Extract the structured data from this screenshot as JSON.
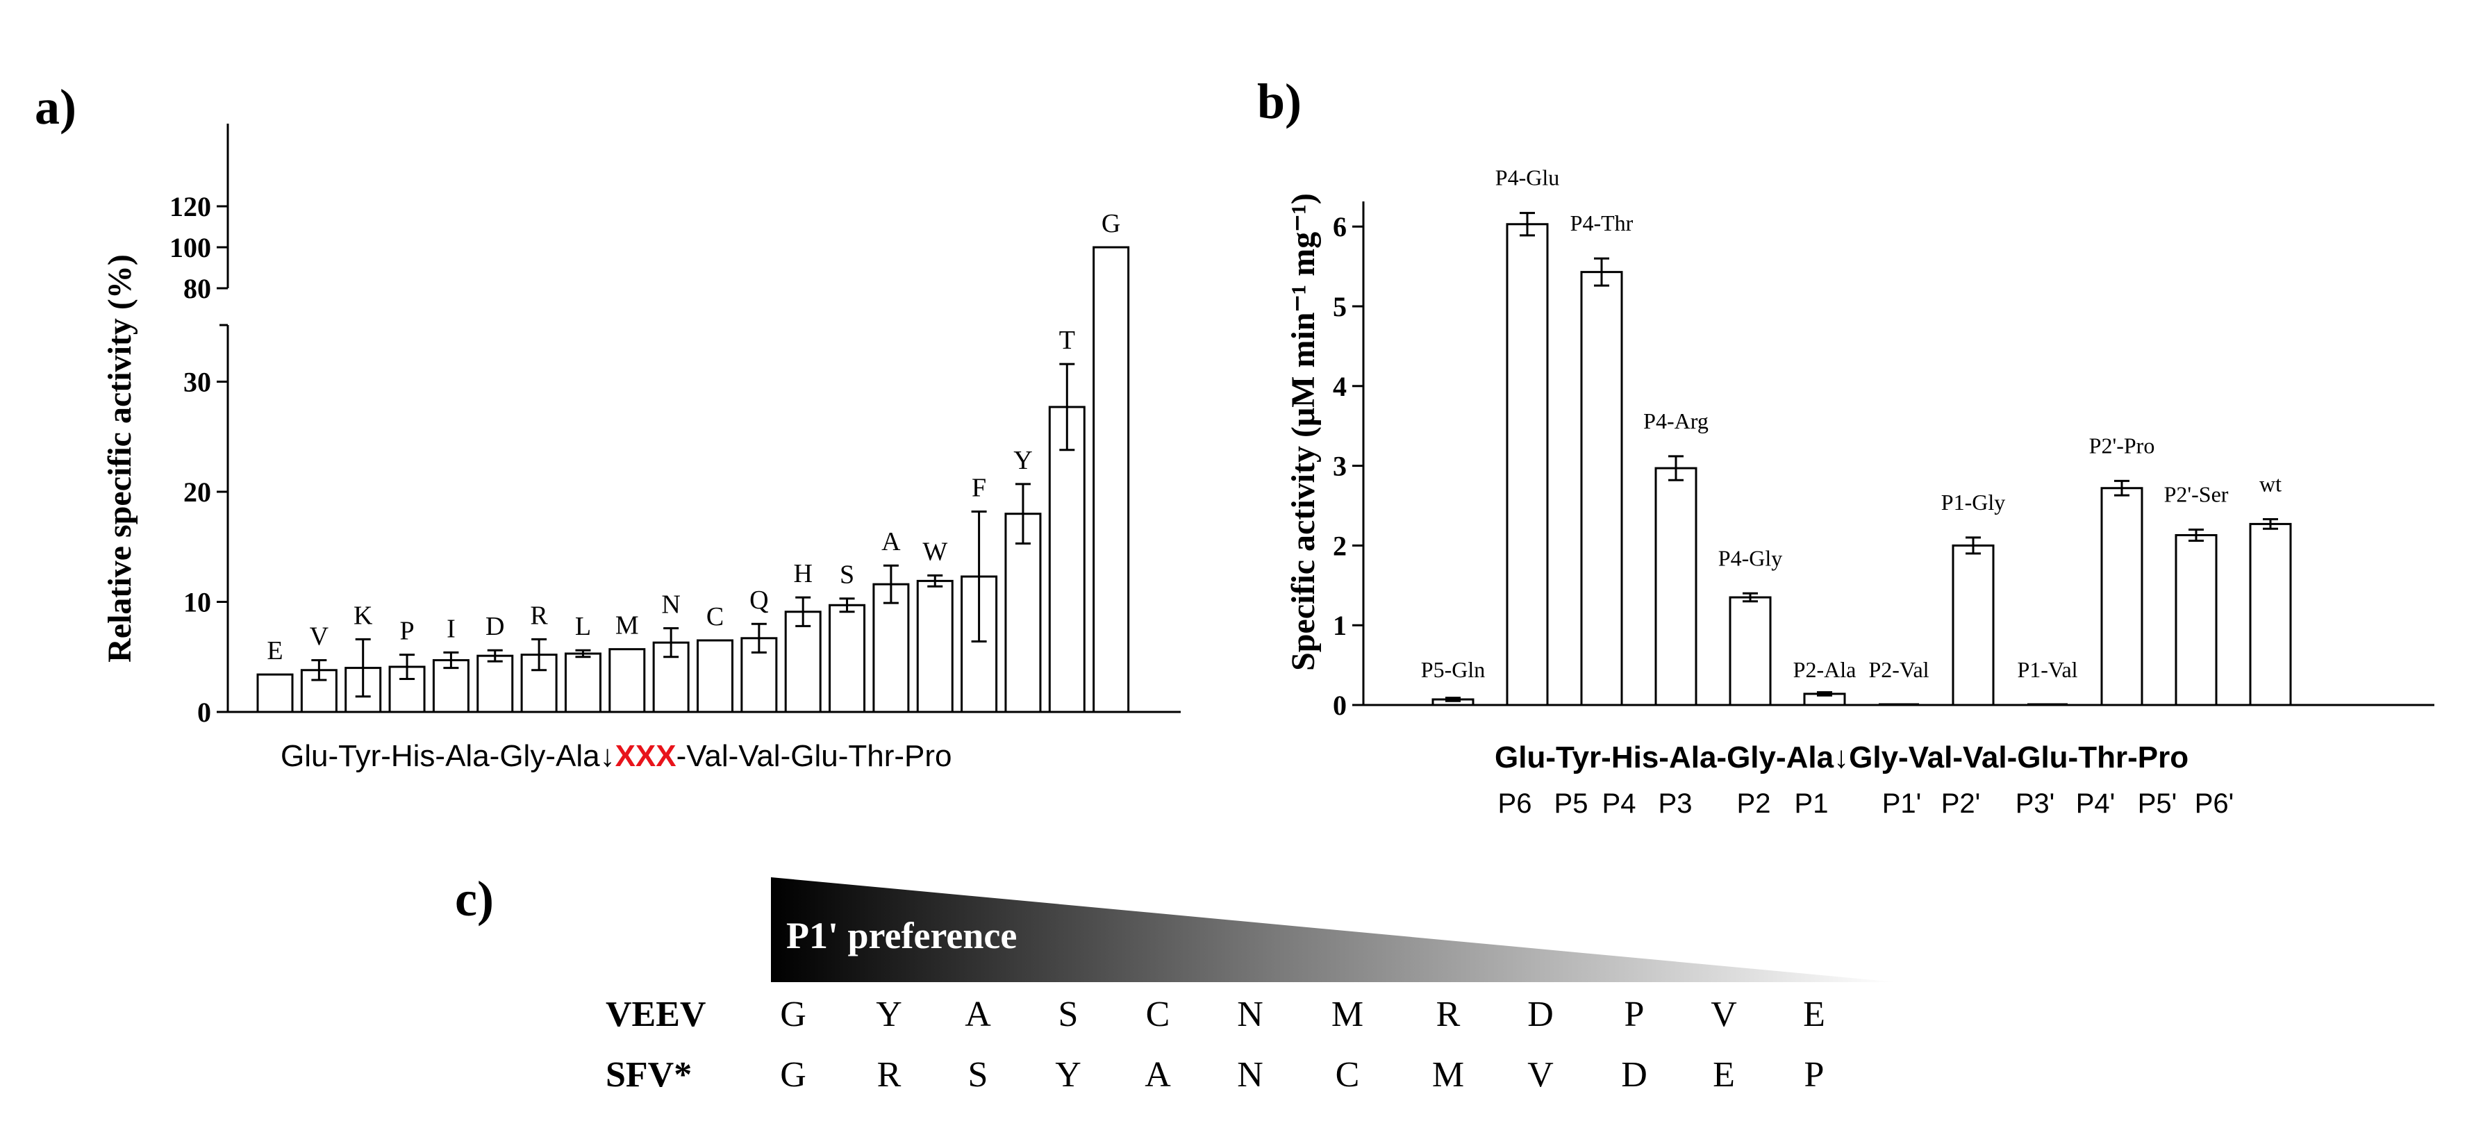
{
  "panel_labels": {
    "a": "a)",
    "b": "b)",
    "c": "c)"
  },
  "chart_data": [
    {
      "type": "bar",
      "title": "",
      "ylabel": "Relative specific activity (%)",
      "xlabel": "Glu-Tyr-His-Ala-Gly-Ala↓XXX-Val-Val-Glu-Thr-Pro",
      "xlabel_parts": {
        "prefix": "Glu-Tyr-His-Ala-Gly-Ala↓",
        "highlight": "XXX",
        "suffix": "-Val-Val-Glu-Thr-Pro",
        "highlight_color": "#e8141b"
      },
      "broken_axis": {
        "lower_range": [
          0,
          35
        ],
        "upper_range": [
          80,
          120
        ]
      },
      "yticks_lower": [
        "0",
        "10",
        "20",
        "30"
      ],
      "yticks_upper": [
        "80",
        "100",
        "120"
      ],
      "categories": [
        "E",
        "V",
        "K",
        "P",
        "I",
        "D",
        "R",
        "L",
        "M",
        "N",
        "C",
        "Q",
        "H",
        "S",
        "A",
        "W",
        "F",
        "Y",
        "T",
        "G"
      ],
      "values": [
        3.4,
        3.8,
        4.0,
        4.1,
        4.7,
        5.1,
        5.2,
        5.3,
        5.7,
        6.3,
        6.5,
        6.7,
        9.1,
        9.7,
        11.6,
        11.9,
        12.3,
        18.0,
        27.7,
        100
      ],
      "errors": [
        0.0,
        0.9,
        2.6,
        1.1,
        0.7,
        0.5,
        1.4,
        0.3,
        0.0,
        1.3,
        0.0,
        1.3,
        1.3,
        0.6,
        1.7,
        0.5,
        5.9,
        2.7,
        3.9,
        0.0
      ]
    },
    {
      "type": "bar",
      "title": "",
      "ylabel": "Specific activity (μM min⁻¹ mg⁻¹)",
      "ylim": [
        0,
        6.3
      ],
      "yticks": [
        "0",
        "1",
        "2",
        "3",
        "4",
        "5",
        "6"
      ],
      "categories": [
        "P5-Gln",
        "P4-Glu",
        "P4-Thr",
        "P4-Arg",
        "P4-Gly",
        "P2-Ala",
        "P2-Val",
        "P1-Gly",
        "P1-Val",
        "P2'-Pro",
        "P2'-Ser",
        "wt"
      ],
      "values": [
        0.07,
        6.03,
        5.43,
        2.97,
        1.35,
        0.14,
        0.0,
        2.0,
        0.0,
        2.72,
        2.13,
        2.27
      ],
      "errors": [
        0.02,
        0.14,
        0.17,
        0.15,
        0.05,
        0.02,
        0.0,
        0.1,
        0.0,
        0.09,
        0.07,
        0.06
      ],
      "sequence": "Glu-Tyr-His-Ala-Gly-Ala↓Gly-Val-Val-Glu-Thr-Pro",
      "positions": [
        "P6",
        "P5",
        "P4",
        "P3",
        "P2",
        "P1",
        "P1'",
        "P2'",
        "P3'",
        "P4'",
        "P5'",
        "P6'"
      ]
    }
  ],
  "preference": {
    "label": "P1' preference",
    "rows": [
      {
        "name": "VEEV",
        "residues": [
          "G",
          "Y",
          "A",
          "S",
          "C",
          "N",
          "M",
          "R",
          "D",
          "P",
          "V",
          "E"
        ]
      },
      {
        "name": "SFV*",
        "residues": [
          "G",
          "R",
          "S",
          "Y",
          "A",
          "N",
          "C",
          "M",
          "V",
          "D",
          "E",
          "P"
        ]
      }
    ]
  },
  "colors": {
    "bar_fill": "#ffffff",
    "stroke": "#000000",
    "highlight": "#e8141b"
  }
}
